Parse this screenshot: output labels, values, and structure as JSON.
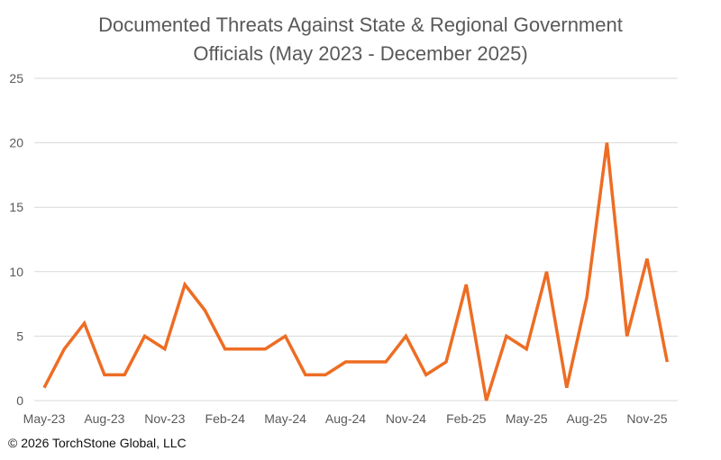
{
  "chart_data": {
    "type": "line",
    "title_line1": "Documented Threats Against State & Regional Government",
    "title_line2": "Officials (May 2023 - December 2025)",
    "x": [
      "May-23",
      "Jun-23",
      "Jul-23",
      "Aug-23",
      "Sep-23",
      "Oct-23",
      "Nov-23",
      "Dec-23",
      "Jan-24",
      "Feb-24",
      "Mar-24",
      "Apr-24",
      "May-24",
      "Jun-24",
      "Jul-24",
      "Aug-24",
      "Sep-24",
      "Oct-24",
      "Nov-24",
      "Dec-24",
      "Jan-25",
      "Feb-25",
      "Mar-25",
      "Apr-25",
      "May-25",
      "Jun-25",
      "Jul-25",
      "Aug-25",
      "Sep-25",
      "Oct-25",
      "Nov-25",
      "Dec-25"
    ],
    "series": [
      {
        "values": [
          1,
          4,
          6,
          2,
          2,
          5,
          4,
          9,
          7,
          4,
          4,
          4,
          5,
          2,
          2,
          3,
          3,
          3,
          5,
          2,
          3,
          9,
          0,
          5,
          4,
          10,
          1,
          8,
          20,
          5,
          11,
          3
        ],
        "color": "#ED6D24"
      }
    ],
    "xtick_labels": [
      "May-23",
      "Aug-23",
      "Nov-23",
      "Feb-24",
      "May-24",
      "Aug-24",
      "Nov-24",
      "Feb-25",
      "May-25",
      "Aug-25",
      "Nov-25"
    ],
    "ytick_labels": [
      "0",
      "5",
      "10",
      "15",
      "20",
      "25"
    ],
    "ylim": [
      0,
      25
    ],
    "grid": true,
    "legend": "none",
    "xlabel": "",
    "ylabel": ""
  },
  "footer": "© 2026 TorchStone Global, LLC"
}
